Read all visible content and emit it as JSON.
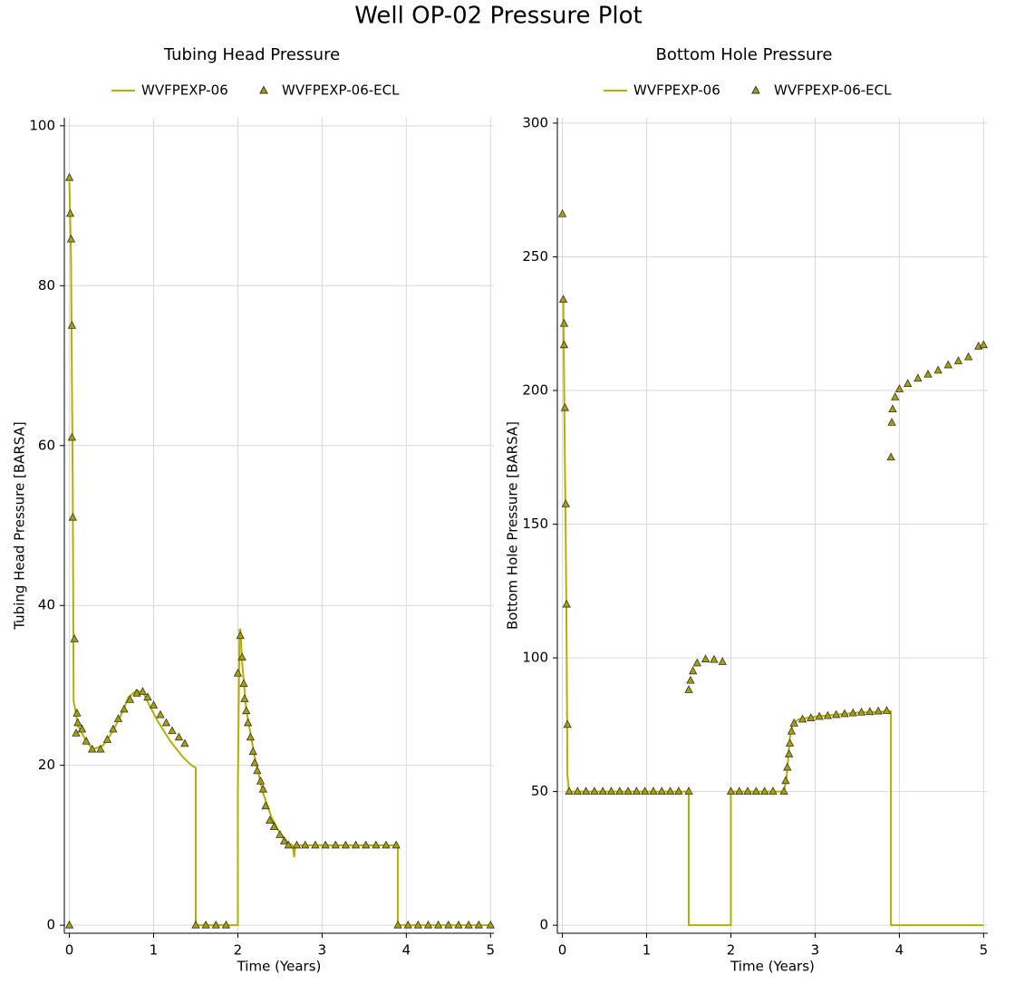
{
  "title": "Well OP-02 Pressure Plot",
  "chart_data": [
    {
      "type": "line",
      "title": "Tubing Head Pressure",
      "xlabel": "Time (Years)",
      "ylabel": "Tubing Head Pressure [BARSA]",
      "xlim": [
        -0.06,
        5.04
      ],
      "ylim": [
        -1,
        101
      ],
      "xticks": [
        0,
        1,
        2,
        3,
        4,
        5
      ],
      "yticks": [
        0,
        20,
        40,
        60,
        80,
        100
      ],
      "grid": true,
      "series": [
        {
          "name": "WVFPEXP-06",
          "style": "line",
          "color": "#b4b000",
          "x": [
            0,
            0.02,
            0.03,
            0.04,
            0.05,
            0.07,
            0.1,
            0.2,
            0.28,
            0.4,
            0.5,
            0.6,
            0.7,
            0.8,
            0.88,
            0.95,
            1.05,
            1.2,
            1.35,
            1.45,
            1.5,
            1.5,
            2.0,
            2.0,
            2.02,
            2.03,
            2.05,
            2.1,
            2.2,
            2.3,
            2.4,
            2.5,
            2.6,
            2.65,
            2.67,
            2.68,
            3.9,
            3.9,
            5.0
          ],
          "values": [
            93,
            83,
            68,
            55,
            28,
            27,
            25,
            23,
            22,
            22.5,
            24,
            26,
            28.5,
            29.4,
            29,
            27.5,
            25.5,
            23,
            21,
            20,
            19.7,
            0,
            0,
            17,
            37,
            37,
            33,
            27,
            21,
            16.5,
            13.5,
            11.5,
            10.3,
            10,
            8.5,
            10,
            10,
            0,
            0
          ]
        },
        {
          "name": "WVFPEXP-06-ECL",
          "style": "marker",
          "color": "#a8a000",
          "x": [
            0,
            0,
            0.01,
            0.02,
            0.03,
            0.03,
            0.04,
            0.06,
            0.08,
            0.09,
            0.1,
            0.15,
            0.2,
            0.27,
            0.37,
            0.45,
            0.52,
            0.58,
            0.65,
            0.72,
            0.8,
            0.87,
            0.93,
            1.0,
            1.08,
            1.15,
            1.22,
            1.3,
            1.37,
            1.5,
            1.62,
            1.74,
            1.86,
            2.0,
            2.03,
            2.05,
            2.07,
            2.08,
            2.1,
            2.12,
            2.15,
            2.18,
            2.2,
            2.23,
            2.27,
            2.3,
            2.33,
            2.38,
            2.43,
            2.5,
            2.55,
            2.6,
            2.7,
            2.8,
            2.92,
            3.04,
            3.16,
            3.28,
            3.4,
            3.52,
            3.64,
            3.76,
            3.88,
            3.9,
            4.02,
            4.14,
            4.26,
            4.38,
            4.5,
            4.62,
            4.74,
            4.86,
            5.0
          ],
          "values": [
            0,
            93.5,
            89,
            85.8,
            75,
            61,
            51,
            35.8,
            24,
            26.5,
            25.3,
            24.5,
            23,
            22,
            22,
            23.2,
            24.5,
            25.8,
            27,
            28.2,
            29,
            29.2,
            28.5,
            27.5,
            26.3,
            25.3,
            24.3,
            23.5,
            22.7,
            0,
            0,
            0,
            0,
            31.5,
            36.2,
            33.5,
            30.2,
            28.3,
            26.8,
            25.3,
            23.5,
            21.7,
            20.3,
            19.3,
            18,
            17,
            14.9,
            13.1,
            12.3,
            11.3,
            10.5,
            10,
            10,
            10,
            10,
            10,
            10,
            10,
            10,
            10,
            10,
            10,
            10,
            0,
            0,
            0,
            0,
            0,
            0,
            0,
            0,
            0,
            0
          ]
        }
      ]
    },
    {
      "type": "line",
      "title": "Bottom Hole Pressure",
      "xlabel": "Time (Years)",
      "ylabel": "Bottom Hole Pressure [BARSA]",
      "xlim": [
        -0.06,
        5.05
      ],
      "ylim": [
        -3,
        302
      ],
      "xticks": [
        0,
        1,
        2,
        3,
        4,
        5
      ],
      "yticks": [
        0,
        50,
        100,
        150,
        200,
        250,
        300
      ],
      "grid": true,
      "series": [
        {
          "name": "WVFPEXP-06",
          "style": "line",
          "color": "#b4b000",
          "x": [
            0,
            0.01,
            0.02,
            0.03,
            0.04,
            0.05,
            0.06,
            0.08,
            1.5,
            1.5,
            2.0,
            2.0,
            2.63,
            2.66,
            2.7,
            2.73,
            2.8,
            3.0,
            3.5,
            3.9,
            3.9,
            5.0
          ],
          "values": [
            234,
            234,
            205,
            172,
            145,
            105,
            56,
            50,
            50,
            0,
            0,
            50,
            50,
            55,
            70,
            75,
            77,
            78,
            79.5,
            80,
            0,
            0
          ]
        },
        {
          "name": "WVFPEXP-06-ECL",
          "style": "marker",
          "color": "#a8a000",
          "x": [
            0,
            0.01,
            0.02,
            0.02,
            0.03,
            0.04,
            0.05,
            0.06,
            0.08,
            0.18,
            0.28,
            0.38,
            0.48,
            0.58,
            0.68,
            0.78,
            0.88,
            0.98,
            1.08,
            1.18,
            1.28,
            1.38,
            1.5,
            1.5,
            1.52,
            1.55,
            1.6,
            1.7,
            1.8,
            1.9,
            2.0,
            2.1,
            2.2,
            2.3,
            2.4,
            2.5,
            2.63,
            2.65,
            2.67,
            2.69,
            2.7,
            2.72,
            2.75,
            2.85,
            2.95,
            3.05,
            3.15,
            3.25,
            3.35,
            3.45,
            3.55,
            3.65,
            3.75,
            3.85,
            3.9,
            3.91,
            3.92,
            3.95,
            4.0,
            4.1,
            4.22,
            4.34,
            4.46,
            4.58,
            4.7,
            4.82,
            4.94,
            5.0
          ],
          "values": [
            266,
            234,
            225,
            217,
            193.5,
            157.5,
            120,
            75,
            50,
            50,
            50,
            50,
            50,
            50,
            50,
            50,
            50,
            50,
            50,
            50,
            50,
            50,
            50,
            88,
            91.5,
            95,
            98,
            99.5,
            99.3,
            98.5,
            50,
            50,
            50,
            50,
            50,
            50,
            50,
            54,
            59,
            64,
            68,
            72.5,
            75.5,
            77,
            77.5,
            78,
            78.3,
            78.7,
            79,
            79.3,
            79.6,
            79.8,
            80,
            80.2,
            175,
            188,
            193,
            197.5,
            200.5,
            202.5,
            204.5,
            206,
            207.5,
            209.5,
            211,
            212.5,
            216.5,
            217
          ]
        }
      ]
    }
  ]
}
